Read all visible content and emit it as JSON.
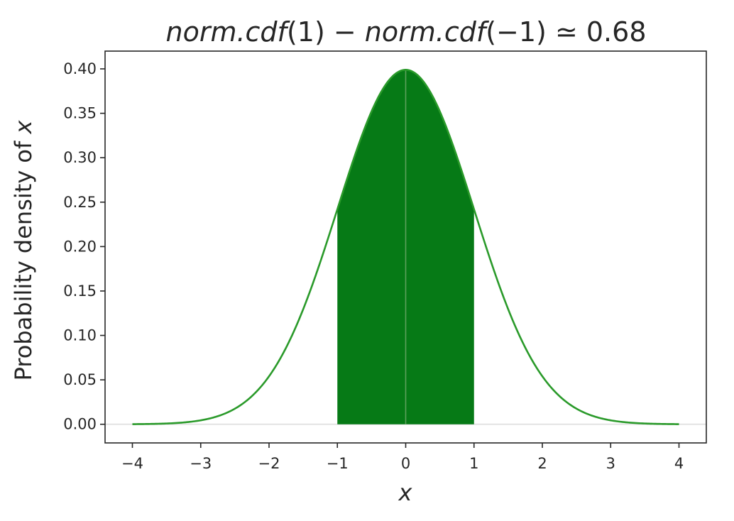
{
  "chart_data": {
    "type": "area",
    "title": "norm.cdf(1) − norm.cdf(−1) ≃ 0.68",
    "title_parts": [
      {
        "text": "norm.cdf",
        "italic": true
      },
      {
        "text": "(1) − ",
        "italic": false
      },
      {
        "text": "norm.cdf",
        "italic": true
      },
      {
        "text": "(−1) ≃ 0.68",
        "italic": false
      }
    ],
    "xlabel": "x",
    "ylabel_prefix": "Probability density of ",
    "ylabel_var": "x",
    "xlim": [
      -4.4,
      4.4
    ],
    "ylim": [
      -0.021,
      0.42
    ],
    "xticks": [
      -4,
      -3,
      -2,
      -1,
      0,
      1,
      2,
      3,
      4
    ],
    "xtick_labels": [
      "−4",
      "−3",
      "−2",
      "−1",
      "0",
      "1",
      "2",
      "3",
      "4"
    ],
    "yticks": [
      0.0,
      0.05,
      0.1,
      0.15,
      0.2,
      0.25,
      0.3,
      0.35,
      0.4
    ],
    "ytick_labels": [
      "0.00",
      "0.05",
      "0.10",
      "0.15",
      "0.20",
      "0.25",
      "0.30",
      "0.35",
      "0.40"
    ],
    "grid": false,
    "series": [
      {
        "kind": "line",
        "function": "standard normal pdf",
        "x": [
          -4.0,
          -3.5,
          -3.0,
          -2.5,
          -2.0,
          -1.5,
          -1.0,
          -0.5,
          0.0,
          0.5,
          1.0,
          1.5,
          2.0,
          2.5,
          3.0,
          3.5,
          4.0
        ],
        "y": [
          0.0001,
          0.0009,
          0.0044,
          0.0175,
          0.054,
          0.1295,
          0.242,
          0.3521,
          0.3989,
          0.3521,
          0.242,
          0.1295,
          0.054,
          0.0175,
          0.0044,
          0.0009,
          0.0001
        ],
        "color": "#2a9a2a"
      },
      {
        "kind": "fill",
        "x_from": -1,
        "x_to": 1,
        "area": 0.68,
        "color": "#067a16"
      }
    ],
    "reference_lines": [
      {
        "orientation": "horizontal",
        "at": 0,
        "color": "#e3e3e3"
      },
      {
        "orientation": "vertical",
        "at": 0,
        "color": "#5da05d"
      }
    ]
  }
}
